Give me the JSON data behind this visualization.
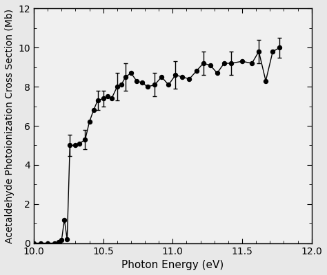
{
  "xlabel": "Photon Energy (eV)",
  "ylabel": "Acetaldehyde Photoionization Cross Section (Mb)",
  "xlim": [
    10.0,
    12.0
  ],
  "ylim": [
    0,
    12
  ],
  "xticks": [
    10.0,
    10.5,
    11.0,
    11.5,
    12.0
  ],
  "yticks": [
    0,
    2,
    4,
    6,
    8,
    10,
    12
  ],
  "x": [
    10.0,
    10.05,
    10.1,
    10.15,
    10.18,
    10.2,
    10.22,
    10.24,
    10.26,
    10.3,
    10.33,
    10.37,
    10.4,
    10.43,
    10.46,
    10.5,
    10.53,
    10.56,
    10.6,
    10.63,
    10.66,
    10.7,
    10.74,
    10.78,
    10.82,
    10.87,
    10.92,
    10.97,
    11.02,
    11.07,
    11.12,
    11.17,
    11.22,
    11.27,
    11.32,
    11.37,
    11.42,
    11.5,
    11.57,
    11.62,
    11.67,
    11.72,
    11.77
  ],
  "y": [
    0.0,
    0.0,
    0.0,
    0.0,
    0.05,
    0.15,
    1.2,
    0.2,
    5.0,
    5.0,
    5.1,
    5.3,
    6.2,
    6.8,
    7.3,
    7.4,
    7.5,
    7.4,
    8.0,
    8.1,
    8.5,
    8.7,
    8.3,
    8.2,
    8.0,
    8.1,
    8.5,
    8.1,
    8.6,
    8.5,
    8.4,
    8.8,
    9.2,
    9.1,
    8.7,
    9.2,
    9.2,
    9.3,
    9.2,
    9.8,
    8.3,
    9.8,
    10.0
  ],
  "yerr": [
    0.0,
    0.0,
    0.0,
    0.0,
    0.0,
    0.0,
    0.0,
    0.0,
    0.55,
    0.0,
    0.0,
    0.5,
    0.0,
    0.0,
    0.5,
    0.4,
    0.0,
    0.0,
    0.7,
    0.0,
    0.7,
    0.0,
    0.0,
    0.0,
    0.0,
    0.6,
    0.0,
    0.0,
    0.7,
    0.0,
    0.0,
    0.0,
    0.6,
    0.0,
    0.0,
    0.0,
    0.6,
    0.0,
    0.0,
    0.6,
    0.0,
    0.0,
    0.5
  ],
  "line_color": "#000000",
  "marker_color": "#000000",
  "background_color": "#e8e8e8",
  "plot_bg_color": "#f0f0f0",
  "fontsize_label": 11,
  "fontsize_tick": 10,
  "marker_size": 4.5,
  "line_width": 1.0,
  "capsize": 2.5,
  "elinewidth": 1.0
}
